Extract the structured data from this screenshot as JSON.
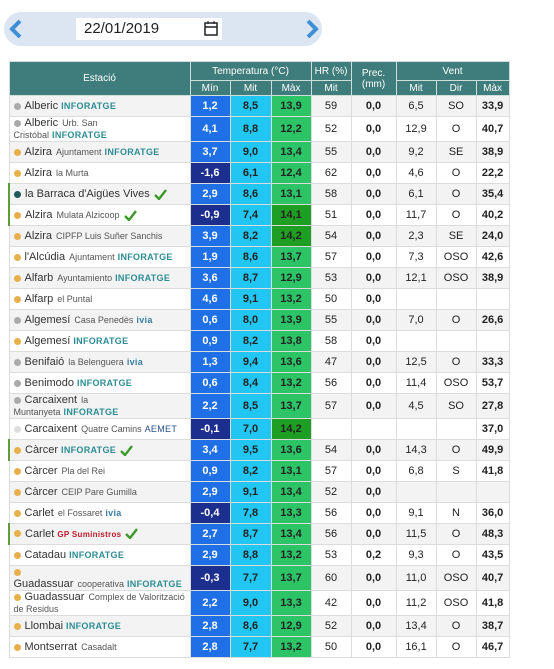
{
  "header": {
    "date": "22/01/2019"
  },
  "table": {
    "head_top": [
      "Estació",
      "Temperatura (°C)",
      "HR (%)",
      "Prec. (mm)",
      "Vent"
    ],
    "head_sub": [
      "Mín",
      "Mit",
      "Màx",
      "Mit",
      "Mit",
      "Dir",
      "Màx"
    ],
    "rows": [
      {
        "name": "Alberic",
        "sub": null,
        "network": "INFORATGE",
        "dot": "#aaaaaa",
        "verified": false,
        "values": [
          "1,2",
          "8,5",
          "13,9",
          "59",
          "0,0",
          "6,5",
          "SO",
          "33,9"
        ]
      },
      {
        "name": "Alberic",
        "sub": "Urb. San Cristóbal",
        "network": "INFORATGE",
        "dot": "#aaaaaa",
        "verified": false,
        "values": [
          "4,1",
          "8,8",
          "12,2",
          "52",
          "0,0",
          "12,9",
          "O",
          "40,7"
        ]
      },
      {
        "name": "Alzira",
        "sub": "Ajuntament",
        "network": "INFORATGE",
        "dot": "#e8b04a",
        "verified": false,
        "values": [
          "3,7",
          "9,0",
          "13,4",
          "55",
          "0,0",
          "9,2",
          "SE",
          "38,9"
        ]
      },
      {
        "name": "Alzira",
        "sub": "la Murta",
        "network": null,
        "dot": "#e8b04a",
        "verified": false,
        "values": [
          "-1,6",
          "6,1",
          "12,4",
          "62",
          "0,0",
          "4,6",
          "O",
          "22,2"
        ]
      },
      {
        "name": "la Barraca d'Aigües Vives",
        "sub": null,
        "network": null,
        "dot": "#1f5a5a",
        "verified": true,
        "values": [
          "2,9",
          "8,6",
          "13,1",
          "58",
          "0,0",
          "6,1",
          "O",
          "35,4"
        ]
      },
      {
        "name": "Alzira",
        "sub": "Mulata Alzicoop",
        "network": null,
        "dot": "#e8b04a",
        "verified": true,
        "values": [
          "-0,9",
          "7,4",
          "14,1",
          "51",
          "0,0",
          "11,7",
          "O",
          "40,2"
        ]
      },
      {
        "name": "Alzira",
        "sub": "CIPFP Luis Suñer Sanchis",
        "network": null,
        "dot": "#e8b04a",
        "verified": false,
        "values": [
          "3,9",
          "8,2",
          "14,2",
          "54",
          "0,0",
          "2,3",
          "SE",
          "24,0"
        ]
      },
      {
        "name": "l'Alcúdia",
        "sub": "Ajuntament",
        "network": "INFORATGE",
        "dot": "#e8b04a",
        "verified": false,
        "values": [
          "1,9",
          "8,6",
          "13,7",
          "57",
          "0,0",
          "7,3",
          "OSO",
          "42,6"
        ]
      },
      {
        "name": "Alfarb",
        "sub": "Ayuntamiento",
        "network": "INFORATGE",
        "dot": "#e8b04a",
        "verified": false,
        "values": [
          "3,6",
          "8,7",
          "12,9",
          "53",
          "0,0",
          "12,1",
          "OSO",
          "38,9"
        ]
      },
      {
        "name": "Alfarp",
        "sub": "el Puntal",
        "network": null,
        "dot": "#e8b04a",
        "verified": false,
        "values": [
          "4,6",
          "9,1",
          "13,2",
          "50",
          "0,0",
          null,
          null,
          null
        ]
      },
      {
        "name": "Algemesí",
        "sub": "Casa Penedès",
        "network": "ivia",
        "dot": "#aaaaaa",
        "verified": false,
        "values": [
          "0,6",
          "8,0",
          "13,9",
          "55",
          "0,0",
          "7,0",
          "O",
          "26,6"
        ]
      },
      {
        "name": "Algemesí",
        "sub": null,
        "network": "INFORATGE",
        "dot": "#e8b04a",
        "verified": false,
        "values": [
          "0,9",
          "8,2",
          "13,8",
          "58",
          "0,0",
          null,
          null,
          null
        ]
      },
      {
        "name": "Benifaió",
        "sub": "la Belenguera",
        "network": "ivia",
        "dot": "#aaaaaa",
        "verified": false,
        "values": [
          "1,3",
          "9,4",
          "13,6",
          "47",
          "0,0",
          "12,5",
          "O",
          "33,3"
        ]
      },
      {
        "name": "Benimodo",
        "sub": null,
        "network": "INFORATGE",
        "dot": "#aaaaaa",
        "verified": false,
        "values": [
          "0,6",
          "8,4",
          "13,2",
          "56",
          "0,0",
          "11,4",
          "OSO",
          "53,7"
        ]
      },
      {
        "name": "Carcaixent",
        "sub": "la Muntanyeta",
        "network": "INFORATGE",
        "dot": "#aaaaaa",
        "verified": false,
        "values": [
          "2,2",
          "8,5",
          "13,7",
          "57",
          "0,0",
          "4,5",
          "SO",
          "27,8"
        ]
      },
      {
        "name": "Carcaixent",
        "sub": "Quatre Camins",
        "network": "AEMET",
        "dot": "#dddddd",
        "verified": false,
        "values": [
          "-0,1",
          "7,0",
          "14,2",
          null,
          null,
          null,
          null,
          "37,0"
        ]
      },
      {
        "name": "Càrcer",
        "sub": null,
        "network": "INFORATGE",
        "dot": "#e8b04a",
        "verified": true,
        "values": [
          "3,4",
          "9,5",
          "13,6",
          "54",
          "0,0",
          "14,3",
          "O",
          "49,9"
        ]
      },
      {
        "name": "Càrcer",
        "sub": "Pla del Rei",
        "network": null,
        "dot": "#e8b04a",
        "verified": false,
        "values": [
          "0,9",
          "8,2",
          "13,1",
          "57",
          "0,0",
          "6,8",
          "S",
          "41,8"
        ]
      },
      {
        "name": "Càrcer",
        "sub": "CEIP Pare Gumilla",
        "network": null,
        "dot": "#e8b04a",
        "verified": false,
        "values": [
          "2,9",
          "9,1",
          "13,4",
          "52",
          "0,0",
          null,
          null,
          null
        ]
      },
      {
        "name": "Carlet",
        "sub": "el Fossaret",
        "network": "ivia",
        "dot": "#e8b04a",
        "verified": false,
        "values": [
          "-0,4",
          "7,8",
          "13,3",
          "56",
          "0,0",
          "9,1",
          "N",
          "36,0"
        ]
      },
      {
        "name": "Carlet",
        "sub": null,
        "network": "GP Suministros",
        "dot": "#e8b04a",
        "verified": true,
        "values": [
          "2,7",
          "8,7",
          "13,4",
          "56",
          "0,0",
          "11,5",
          "O",
          "48,3"
        ]
      },
      {
        "name": "Catadau",
        "sub": null,
        "network": "INFORATGE",
        "dot": "#e8b04a",
        "verified": false,
        "values": [
          "2,9",
          "8,8",
          "13,2",
          "53",
          "0,2",
          "9,3",
          "O",
          "43,5"
        ]
      },
      {
        "name": "Guadassuar",
        "sub": "cooperativa",
        "network": "INFORATGE",
        "dot": "#e8b04a",
        "verified": false,
        "values": [
          "-0,3",
          "7,7",
          "13,7",
          "60",
          "0,0",
          "11,0",
          "OSO",
          "40,7"
        ]
      },
      {
        "name": "Guadassuar",
        "sub": "Complex de Valorització de Residus",
        "network": null,
        "dot": "#e8b04a",
        "verified": false,
        "values": [
          "2,2",
          "9,0",
          "13,3",
          "42",
          "0,0",
          "11,2",
          "OSO",
          "41,8"
        ]
      },
      {
        "name": "Llombai",
        "sub": null,
        "network": "INFORATGE",
        "dot": "#e8b04a",
        "verified": false,
        "values": [
          "2,8",
          "8,6",
          "12,9",
          "52",
          "0,0",
          "13,4",
          "O",
          "38,7"
        ]
      },
      {
        "name": "Montserrat",
        "sub": "Casadalt",
        "network": null,
        "dot": "#e8b04a",
        "verified": false,
        "values": [
          "2,8",
          "7,7",
          "13,2",
          "50",
          "0,0",
          "16,1",
          "O",
          "46,7"
        ]
      }
    ]
  }
}
